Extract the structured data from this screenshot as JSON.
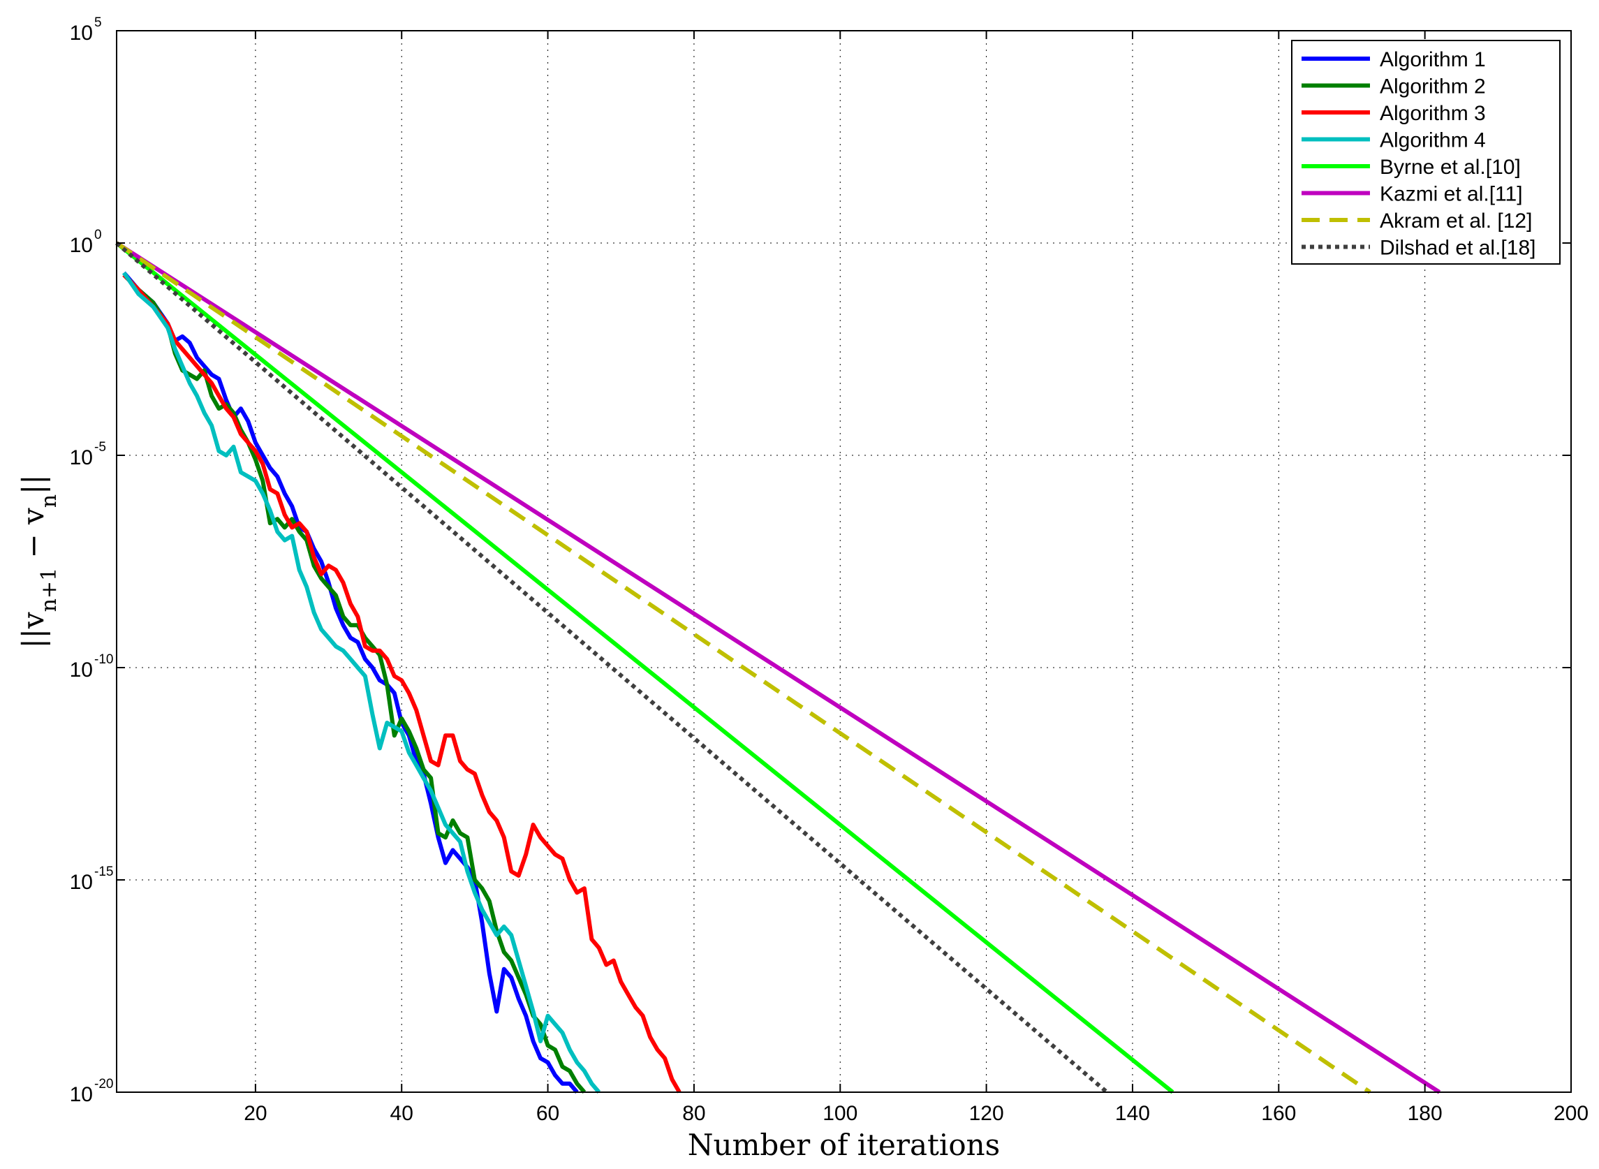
{
  "chart_data": {
    "type": "line",
    "title": "",
    "xlabel": "Number of iterations",
    "ylabel_parts": [
      "||v",
      "n+1",
      " − v",
      "n",
      "||"
    ],
    "xlim": [
      1,
      200
    ],
    "ylim_exp": [
      -20,
      5
    ],
    "y_scale": "log",
    "grid": true,
    "grid_style": "dotted",
    "legend_position": "top-right",
    "x_ticks": [
      20,
      40,
      60,
      80,
      100,
      120,
      140,
      160,
      180,
      200
    ],
    "y_ticks": [
      {
        "base": "10",
        "exp": "-20",
        "value": -20
      },
      {
        "base": "10",
        "exp": "-15",
        "value": -15
      },
      {
        "base": "10",
        "exp": "-10",
        "value": -10
      },
      {
        "base": "10",
        "exp": "-5",
        "value": -5
      },
      {
        "base": "10",
        "exp": "0",
        "value": 0
      },
      {
        "base": "10",
        "exp": "5",
        "value": 5
      }
    ],
    "series": [
      {
        "name": "Algorithm 1",
        "color": "#0000ff",
        "style": "solid",
        "points": [
          [
            2,
            -0.7
          ],
          [
            4,
            -1.1
          ],
          [
            6,
            -1.4
          ],
          [
            8,
            -1.9
          ],
          [
            9,
            -2.3
          ],
          [
            10,
            -2.2
          ],
          [
            11,
            -2.35
          ],
          [
            12,
            -2.7
          ],
          [
            13,
            -2.9
          ],
          [
            14,
            -3.1
          ],
          [
            15,
            -3.2
          ],
          [
            16,
            -3.7
          ],
          [
            17,
            -4.1
          ],
          [
            18,
            -3.9
          ],
          [
            19,
            -4.2
          ],
          [
            20,
            -4.7
          ],
          [
            21,
            -5.0
          ],
          [
            22,
            -5.3
          ],
          [
            23,
            -5.5
          ],
          [
            24,
            -5.9
          ],
          [
            25,
            -6.2
          ],
          [
            26,
            -6.7
          ],
          [
            27,
            -6.8
          ],
          [
            28,
            -7.2
          ],
          [
            29,
            -7.5
          ],
          [
            30,
            -8.0
          ],
          [
            31,
            -8.6
          ],
          [
            32,
            -9.0
          ],
          [
            33,
            -9.3
          ],
          [
            34,
            -9.4
          ],
          [
            35,
            -9.8
          ],
          [
            36,
            -10.0
          ],
          [
            37,
            -10.3
          ],
          [
            38,
            -10.4
          ],
          [
            39,
            -10.6
          ],
          [
            40,
            -11.3
          ],
          [
            41,
            -11.6
          ],
          [
            42,
            -12.2
          ],
          [
            43,
            -12.5
          ],
          [
            44,
            -13.2
          ],
          [
            45,
            -14.0
          ],
          [
            46,
            -14.6
          ],
          [
            47,
            -14.3
          ],
          [
            48,
            -14.5
          ],
          [
            49,
            -14.7
          ],
          [
            50,
            -15.0
          ],
          [
            51,
            -16.0
          ],
          [
            52,
            -17.2
          ],
          [
            53,
            -18.1
          ],
          [
            54,
            -17.1
          ],
          [
            55,
            -17.3
          ],
          [
            56,
            -17.8
          ],
          [
            57,
            -18.2
          ],
          [
            58,
            -18.8
          ],
          [
            59,
            -19.2
          ],
          [
            60,
            -19.3
          ],
          [
            61,
            -19.6
          ],
          [
            62,
            -19.8
          ],
          [
            63,
            -19.8
          ],
          [
            64,
            -20.0
          ]
        ]
      },
      {
        "name": "Algorithm 2",
        "color": "#007f00",
        "style": "solid",
        "points": [
          [
            2,
            -0.75
          ],
          [
            4,
            -1.1
          ],
          [
            6,
            -1.4
          ],
          [
            8,
            -1.95
          ],
          [
            9,
            -2.6
          ],
          [
            10,
            -3.0
          ],
          [
            11,
            -3.1
          ],
          [
            12,
            -3.2
          ],
          [
            13,
            -3.0
          ],
          [
            14,
            -3.6
          ],
          [
            15,
            -3.9
          ],
          [
            16,
            -3.8
          ],
          [
            17,
            -4.0
          ],
          [
            18,
            -4.4
          ],
          [
            19,
            -4.7
          ],
          [
            20,
            -5.1
          ],
          [
            21,
            -5.6
          ],
          [
            22,
            -6.6
          ],
          [
            23,
            -6.5
          ],
          [
            24,
            -6.7
          ],
          [
            25,
            -6.5
          ],
          [
            26,
            -6.8
          ],
          [
            27,
            -7.0
          ],
          [
            28,
            -7.6
          ],
          [
            29,
            -7.9
          ],
          [
            30,
            -8.1
          ],
          [
            31,
            -8.3
          ],
          [
            32,
            -8.8
          ],
          [
            33,
            -9.0
          ],
          [
            34,
            -9.0
          ],
          [
            35,
            -9.3
          ],
          [
            36,
            -9.5
          ],
          [
            37,
            -9.7
          ],
          [
            38,
            -10.4
          ],
          [
            39,
            -11.6
          ],
          [
            40,
            -11.2
          ],
          [
            41,
            -11.5
          ],
          [
            42,
            -11.9
          ],
          [
            43,
            -12.4
          ],
          [
            44,
            -12.6
          ],
          [
            45,
            -13.9
          ],
          [
            46,
            -14.0
          ],
          [
            47,
            -13.6
          ],
          [
            48,
            -13.9
          ],
          [
            49,
            -14.0
          ],
          [
            50,
            -15.0
          ],
          [
            51,
            -15.2
          ],
          [
            52,
            -15.5
          ],
          [
            53,
            -16.2
          ],
          [
            54,
            -16.7
          ],
          [
            55,
            -16.9
          ],
          [
            56,
            -17.3
          ],
          [
            57,
            -17.7
          ],
          [
            58,
            -18.2
          ],
          [
            59,
            -18.4
          ],
          [
            60,
            -18.9
          ],
          [
            61,
            -19.0
          ],
          [
            62,
            -19.4
          ],
          [
            63,
            -19.5
          ],
          [
            64,
            -19.8
          ],
          [
            65,
            -20.0
          ]
        ]
      },
      {
        "name": "Algorithm 3",
        "color": "#ff0000",
        "style": "solid",
        "points": [
          [
            2,
            -0.75
          ],
          [
            4,
            -1.1
          ],
          [
            6,
            -1.5
          ],
          [
            8,
            -1.9
          ],
          [
            9,
            -2.3
          ],
          [
            10,
            -2.5
          ],
          [
            11,
            -2.7
          ],
          [
            12,
            -2.9
          ],
          [
            13,
            -3.1
          ],
          [
            14,
            -3.3
          ],
          [
            15,
            -3.6
          ],
          [
            16,
            -3.9
          ],
          [
            17,
            -4.1
          ],
          [
            18,
            -4.5
          ],
          [
            19,
            -4.7
          ],
          [
            20,
            -4.9
          ],
          [
            21,
            -5.2
          ],
          [
            22,
            -5.8
          ],
          [
            23,
            -5.9
          ],
          [
            24,
            -6.4
          ],
          [
            25,
            -6.7
          ],
          [
            26,
            -6.6
          ],
          [
            27,
            -6.8
          ],
          [
            28,
            -7.4
          ],
          [
            29,
            -7.8
          ],
          [
            30,
            -7.6
          ],
          [
            31,
            -7.7
          ],
          [
            32,
            -8.0
          ],
          [
            33,
            -8.5
          ],
          [
            34,
            -8.8
          ],
          [
            35,
            -9.5
          ],
          [
            36,
            -9.6
          ],
          [
            37,
            -9.6
          ],
          [
            38,
            -9.8
          ],
          [
            39,
            -10.2
          ],
          [
            40,
            -10.3
          ],
          [
            41,
            -10.6
          ],
          [
            42,
            -11.0
          ],
          [
            43,
            -11.6
          ],
          [
            44,
            -12.2
          ],
          [
            45,
            -12.3
          ],
          [
            46,
            -11.6
          ],
          [
            47,
            -11.6
          ],
          [
            48,
            -12.2
          ],
          [
            49,
            -12.4
          ],
          [
            50,
            -12.5
          ],
          [
            51,
            -13.0
          ],
          [
            52,
            -13.4
          ],
          [
            53,
            -13.6
          ],
          [
            54,
            -14.0
          ],
          [
            55,
            -14.8
          ],
          [
            56,
            -14.9
          ],
          [
            57,
            -14.4
          ],
          [
            58,
            -13.7
          ],
          [
            59,
            -14.0
          ],
          [
            60,
            -14.2
          ],
          [
            61,
            -14.4
          ],
          [
            62,
            -14.5
          ],
          [
            63,
            -15.0
          ],
          [
            64,
            -15.3
          ],
          [
            65,
            -15.2
          ],
          [
            66,
            -16.4
          ],
          [
            67,
            -16.6
          ],
          [
            68,
            -17.0
          ],
          [
            69,
            -16.9
          ],
          [
            70,
            -17.4
          ],
          [
            71,
            -17.7
          ],
          [
            72,
            -18.0
          ],
          [
            73,
            -18.2
          ],
          [
            74,
            -18.7
          ],
          [
            75,
            -19.0
          ],
          [
            76,
            -19.2
          ],
          [
            77,
            -19.7
          ],
          [
            78,
            -20.0
          ]
        ]
      },
      {
        "name": "Algorithm 4",
        "color": "#00bfbf",
        "style": "solid",
        "points": [
          [
            2,
            -0.7
          ],
          [
            4,
            -1.2
          ],
          [
            6,
            -1.5
          ],
          [
            8,
            -2.0
          ],
          [
            9,
            -2.5
          ],
          [
            10,
            -2.9
          ],
          [
            11,
            -3.3
          ],
          [
            12,
            -3.6
          ],
          [
            13,
            -4.0
          ],
          [
            14,
            -4.3
          ],
          [
            15,
            -4.9
          ],
          [
            16,
            -5.0
          ],
          [
            17,
            -4.8
          ],
          [
            18,
            -5.4
          ],
          [
            19,
            -5.5
          ],
          [
            20,
            -5.6
          ],
          [
            21,
            -5.9
          ],
          [
            22,
            -6.3
          ],
          [
            23,
            -6.8
          ],
          [
            24,
            -7.0
          ],
          [
            25,
            -6.9
          ],
          [
            26,
            -7.7
          ],
          [
            27,
            -8.1
          ],
          [
            28,
            -8.7
          ],
          [
            29,
            -9.1
          ],
          [
            30,
            -9.3
          ],
          [
            31,
            -9.5
          ],
          [
            32,
            -9.6
          ],
          [
            33,
            -9.8
          ],
          [
            34,
            -10.0
          ],
          [
            35,
            -10.2
          ],
          [
            36,
            -11.1
          ],
          [
            37,
            -11.9
          ],
          [
            38,
            -11.3
          ],
          [
            39,
            -11.4
          ],
          [
            40,
            -11.5
          ],
          [
            41,
            -12.0
          ],
          [
            42,
            -12.3
          ],
          [
            43,
            -12.6
          ],
          [
            44,
            -12.9
          ],
          [
            45,
            -13.3
          ],
          [
            46,
            -13.7
          ],
          [
            47,
            -13.9
          ],
          [
            48,
            -14.1
          ],
          [
            49,
            -14.8
          ],
          [
            50,
            -15.3
          ],
          [
            51,
            -15.7
          ],
          [
            52,
            -16.0
          ],
          [
            53,
            -16.3
          ],
          [
            54,
            -16.1
          ],
          [
            55,
            -16.3
          ],
          [
            56,
            -16.9
          ],
          [
            57,
            -17.5
          ],
          [
            58,
            -18.1
          ],
          [
            59,
            -18.8
          ],
          [
            60,
            -18.2
          ],
          [
            61,
            -18.4
          ],
          [
            62,
            -18.6
          ],
          [
            63,
            -19.0
          ],
          [
            64,
            -19.3
          ],
          [
            65,
            -19.5
          ],
          [
            66,
            -19.8
          ],
          [
            67,
            -20.0
          ]
        ]
      },
      {
        "name": "Byrne et al.[10]",
        "color": "#00ff00",
        "style": "solid",
        "points": [
          [
            1,
            0.0
          ],
          [
            145.5,
            -20.0
          ]
        ]
      },
      {
        "name": "Kazmi et al.[11]",
        "color": "#bf00bf",
        "style": "solid",
        "points": [
          [
            1,
            0.0
          ],
          [
            182,
            -20.0
          ]
        ]
      },
      {
        "name": "Akram et al. [12]",
        "color": "#bfbf00",
        "style": "dashed",
        "points": [
          [
            1,
            0.0
          ],
          [
            172.5,
            -20.0
          ]
        ]
      },
      {
        "name": "Dilshad et al.[18]",
        "color": "#3f3f3f",
        "style": "dotted",
        "points": [
          [
            1,
            0.0
          ],
          [
            136.5,
            -20.0
          ]
        ]
      }
    ]
  }
}
